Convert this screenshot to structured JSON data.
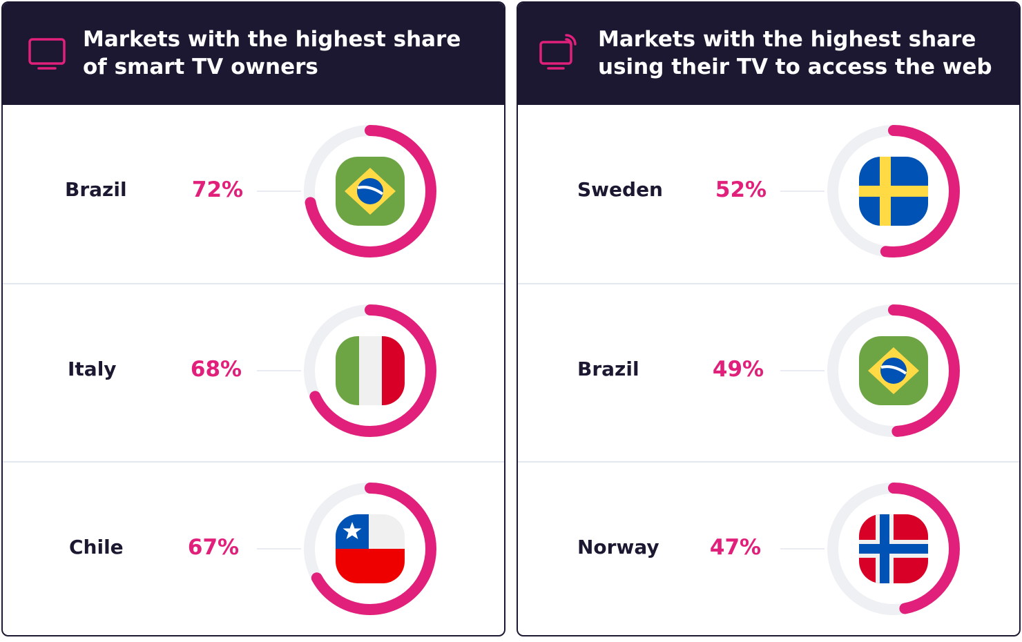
{
  "colors": {
    "header_bg": "#1d1831",
    "accent": "#e0207a",
    "track": "#eef0f4",
    "divider": "#e3e8f0",
    "text_dark": "#1d1831"
  },
  "chart_data": [
    {
      "type": "pie",
      "title_lines": [
        "Markets with the highest share",
        "of smart TV owners"
      ],
      "icon": "tv-icon",
      "unit": "%",
      "items": [
        {
          "label": "Brazil",
          "value": 72,
          "display": "72%",
          "flag": "brazil-flag-icon"
        },
        {
          "label": "Italy",
          "value": 68,
          "display": "68%",
          "flag": "italy-flag-icon"
        },
        {
          "label": "Chile",
          "value": 67,
          "display": "67%",
          "flag": "chile-flag-icon"
        }
      ]
    },
    {
      "type": "pie",
      "title_lines": [
        "Markets with the highest share",
        "using their TV to access the web"
      ],
      "icon": "smart-tv-cast-icon",
      "unit": "%",
      "items": [
        {
          "label": "Sweden",
          "value": 52,
          "display": "52%",
          "flag": "sweden-flag-icon"
        },
        {
          "label": "Brazil",
          "value": 49,
          "display": "49%",
          "flag": "brazil-flag-icon"
        },
        {
          "label": "Norway",
          "value": 47,
          "display": "47%",
          "flag": "norway-flag-icon"
        }
      ]
    }
  ]
}
